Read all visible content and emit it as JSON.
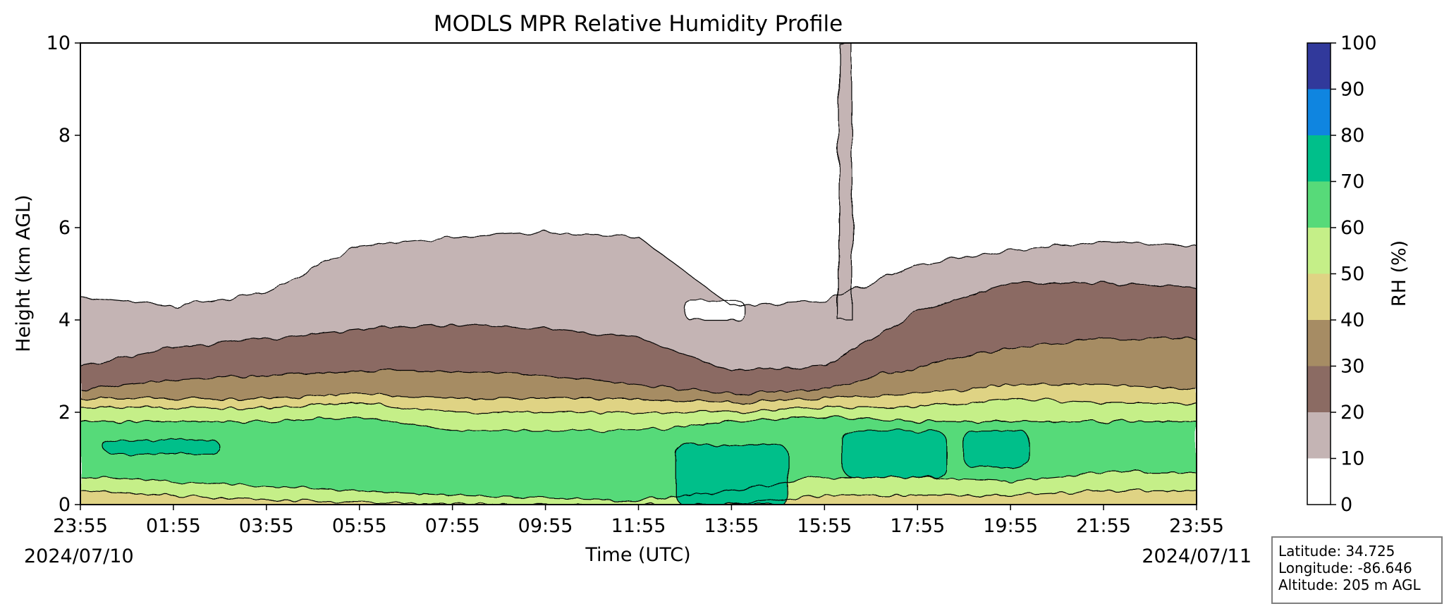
{
  "chart_data": {
    "type": "heatmap",
    "title": "MODLS MPR Relative Humidity Profile",
    "xlabel": "Time (UTC)",
    "ylabel": "Height (km AGL)",
    "colorbar_label": "RH (%)",
    "x_ticks": [
      "23:55",
      "01:55",
      "03:55",
      "05:55",
      "07:55",
      "09:55",
      "11:55",
      "13:55",
      "15:55",
      "17:55",
      "19:55",
      "21:55",
      "23:55"
    ],
    "start_date": "2024/07/10",
    "end_date": "2024/07/11",
    "y_ticks": [
      0,
      2,
      4,
      6,
      8,
      10
    ],
    "ylim": [
      0,
      10
    ],
    "colorbar_ticks": [
      0,
      10,
      20,
      30,
      40,
      50,
      60,
      70,
      80,
      90,
      100
    ],
    "levels": [
      0,
      10,
      20,
      30,
      40,
      50,
      60,
      70,
      80,
      90,
      100
    ],
    "level_colors": [
      "#ffffff",
      "#c4b4b4",
      "#8b6b63",
      "#a68c64",
      "#dfd384",
      "#c5ef88",
      "#57da79",
      "#00bf8a",
      "#0f85e0",
      "#31399b"
    ],
    "contour_line_color": "#000000",
    "location": {
      "latitude": "Latitude: 34.725",
      "longitude": "Longitude: -86.646",
      "altitude": "Altitude: 205 m AGL"
    },
    "layer_boundaries_km": [
      {
        "level": 10,
        "x": [
          0,
          2,
          4,
          6,
          8,
          10,
          12,
          14,
          16,
          18,
          20,
          22,
          24
        ],
        "y": [
          4.5,
          4.3,
          4.6,
          5.6,
          5.8,
          5.9,
          5.8,
          4.3,
          4.4,
          5.2,
          5.5,
          5.7,
          5.6
        ]
      },
      {
        "level": 20,
        "x": [
          0,
          2,
          4,
          6,
          8,
          10,
          12,
          14,
          16,
          18,
          20,
          22,
          24
        ],
        "y": [
          3.0,
          3.4,
          3.6,
          3.8,
          3.9,
          3.8,
          3.6,
          2.9,
          3.0,
          4.2,
          4.8,
          4.8,
          4.7
        ]
      },
      {
        "level": 30,
        "x": [
          0,
          2,
          4,
          6,
          8,
          10,
          12,
          14,
          16,
          18,
          20,
          22,
          24
        ],
        "y": [
          2.5,
          2.7,
          2.8,
          2.9,
          2.9,
          2.8,
          2.6,
          2.4,
          2.5,
          3.0,
          3.4,
          3.6,
          3.6
        ]
      },
      {
        "level": 40,
        "x": [
          0,
          2,
          4,
          6,
          8,
          10,
          12,
          14,
          16,
          18,
          20,
          22,
          24
        ],
        "y": [
          2.3,
          2.3,
          2.3,
          2.4,
          2.3,
          2.3,
          2.3,
          2.2,
          2.3,
          2.4,
          2.6,
          2.6,
          2.5
        ]
      },
      {
        "level": 50,
        "x": [
          0,
          2,
          4,
          6,
          8,
          10,
          12,
          14,
          16,
          18,
          20,
          22,
          24
        ],
        "y": [
          2.1,
          2.1,
          2.1,
          2.2,
          2.0,
          2.0,
          2.0,
          2.0,
          2.1,
          2.1,
          2.3,
          2.2,
          2.2
        ]
      },
      {
        "level": 60,
        "x": [
          0,
          2,
          4,
          6,
          8,
          10,
          12,
          14,
          16,
          18,
          20,
          22,
          24
        ],
        "y": [
          1.8,
          1.8,
          1.8,
          1.9,
          1.6,
          1.6,
          1.6,
          1.8,
          1.9,
          1.8,
          1.8,
          1.8,
          1.8
        ]
      },
      {
        "level": 50,
        "x": [
          0,
          2,
          4,
          6,
          8,
          10,
          12,
          14,
          16,
          18,
          20,
          22,
          24
        ],
        "y": [
          0.6,
          0.5,
          0.4,
          0.3,
          0.2,
          0.15,
          0.1,
          0.3,
          0.6,
          0.6,
          0.5,
          0.7,
          0.7
        ]
      },
      {
        "level": 40,
        "x": [
          0,
          2,
          4,
          6,
          8,
          10,
          12,
          14,
          16,
          18,
          20,
          22,
          24
        ],
        "y": [
          0.3,
          0.2,
          0.1,
          0.05,
          0.02,
          0,
          0,
          0,
          0.2,
          0.2,
          0.2,
          0.3,
          0.3
        ]
      }
    ],
    "moist_cores_rh_70_80": [
      {
        "x": [
          0.5,
          3.0
        ],
        "y": [
          1.1,
          1.4
        ]
      },
      {
        "x": [
          12.8,
          15.2
        ],
        "y": [
          0.0,
          1.3
        ]
      },
      {
        "x": [
          16.4,
          18.6
        ],
        "y": [
          0.6,
          1.6
        ]
      },
      {
        "x": [
          19.0,
          20.4
        ],
        "y": [
          0.8,
          1.6
        ]
      }
    ],
    "dry_gap_rh_0_10": {
      "x": [
        13.0,
        14.3
      ],
      "y": [
        4.0,
        4.4
      ]
    },
    "moist_spike_rh_10_20": {
      "x": [
        16.3,
        16.6
      ],
      "y": [
        4.0,
        10.0
      ]
    }
  }
}
